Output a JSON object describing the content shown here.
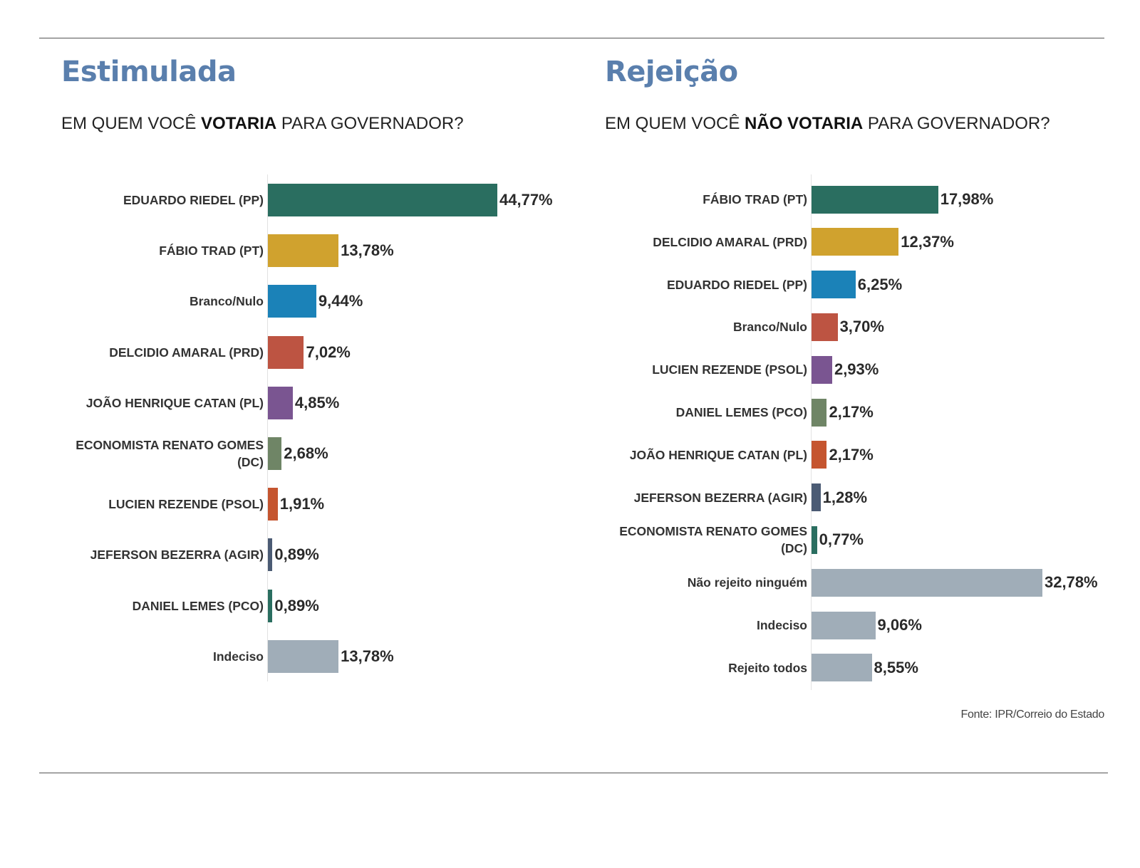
{
  "source": "Fonte: IPR/Correio do Estado",
  "chart_data": [
    {
      "type": "bar",
      "orientation": "horizontal",
      "title": "Estimulada",
      "subtitle_pre": "EM QUEM VOCÊ ",
      "subtitle_bold": "VOTARIA",
      "subtitle_post": " PARA GOVERNADOR?",
      "categories": [
        "EDUARDO RIEDEL (PP)",
        "FÁBIO TRAD (PT)",
        "Branco/Nulo",
        "DELCIDIO AMARAL (PRD)",
        "JOÃO HENRIQUE CATAN (PL)",
        "ECONOMISTA RENATO GOMES (DC)",
        "LUCIEN REZENDE (PSOL)",
        "JEFERSON BEZERRA (AGIR)",
        "DANIEL LEMES (PCO)",
        "Indeciso"
      ],
      "values": [
        44.77,
        13.78,
        9.44,
        7.02,
        4.85,
        2.68,
        1.91,
        0.89,
        0.89,
        13.78
      ],
      "value_labels": [
        "44,77%",
        "13,78%",
        "9,44%",
        "7,02%",
        "4,85%",
        "2,68%",
        "1,91%",
        "0,89%",
        "0,89%",
        "13,78%"
      ],
      "colors": [
        "#2a6e60",
        "#d0a22e",
        "#1b82b8",
        "#bd5442",
        "#7a5591",
        "#6f8566",
        "#c5552f",
        "#4b5b74",
        "#2a6e60",
        "#a0adb8"
      ],
      "xlim": [
        0,
        45
      ]
    },
    {
      "type": "bar",
      "orientation": "horizontal",
      "title": "Rejeição",
      "subtitle_pre": "EM QUEM VOCÊ ",
      "subtitle_bold": "NÃO VOTARIA",
      "subtitle_post": " PARA GOVERNADOR?",
      "categories": [
        "FÁBIO TRAD (PT)",
        "DELCIDIO AMARAL (PRD)",
        "EDUARDO RIEDEL (PP)",
        "Branco/Nulo",
        "LUCIEN REZENDE (PSOL)",
        "DANIEL LEMES (PCO)",
        "JOÃO HENRIQUE CATAN (PL)",
        "JEFERSON BEZERRA (AGIR)",
        "ECONOMISTA RENATO GOMES (DC)",
        "Não rejeito ninguém",
        "Indeciso",
        "Rejeito todos"
      ],
      "values": [
        17.98,
        12.37,
        6.25,
        3.7,
        2.93,
        2.17,
        2.17,
        1.28,
        0.77,
        32.78,
        9.06,
        8.55
      ],
      "value_labels": [
        "17,98%",
        "12,37%",
        "6,25%",
        "3,70%",
        "2,93%",
        "2,17%",
        "2,17%",
        "1,28%",
        "0,77%",
        "32,78%",
        "9,06%",
        "8,55%"
      ],
      "colors": [
        "#2a6e60",
        "#d0a22e",
        "#1b82b8",
        "#bd5442",
        "#7a5591",
        "#6f8566",
        "#c5552f",
        "#4b5b74",
        "#2a6e60",
        "#a0adb8",
        "#a0adb8",
        "#a0adb8"
      ],
      "xlim": [
        0,
        33
      ]
    }
  ]
}
